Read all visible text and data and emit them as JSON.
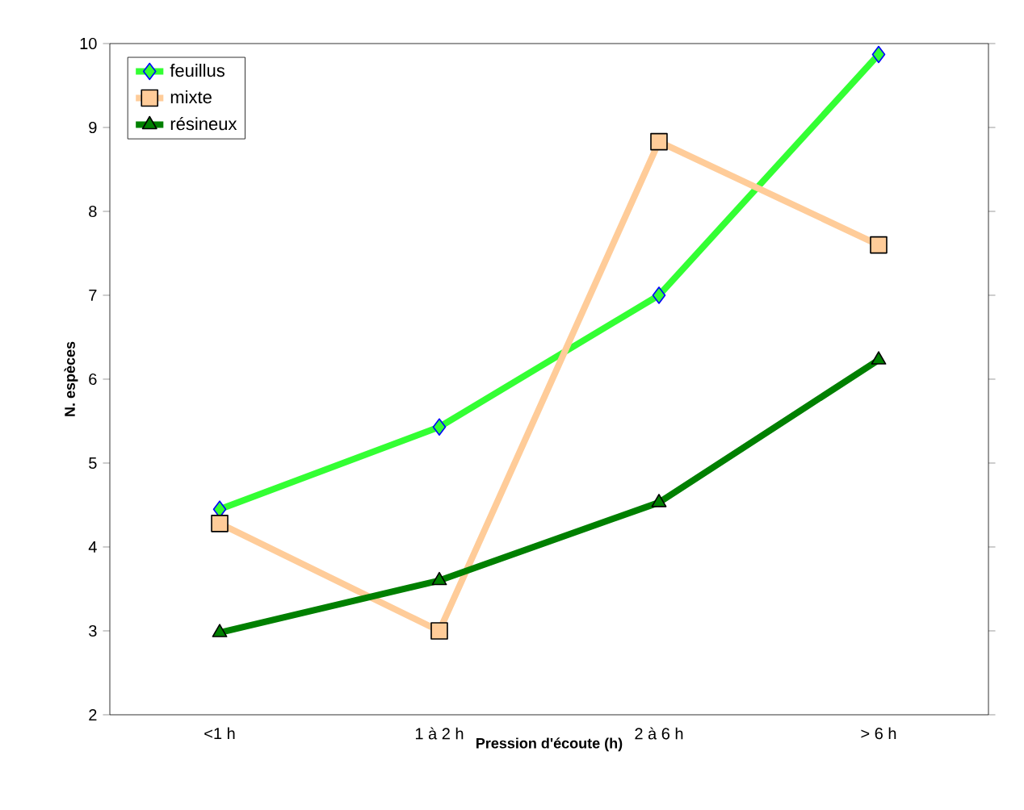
{
  "chart_data": {
    "type": "line",
    "xlabel": "Pression d'écoute (h)",
    "ylabel": "N. espèces",
    "categories": [
      "<1 h",
      "1 à 2 h",
      "2 à 6 h",
      "> 6 h"
    ],
    "series": [
      {
        "name": "feuillus",
        "color": "#33ff33",
        "marker": "diamond",
        "values": [
          4.45,
          5.43,
          7.0,
          9.87
        ]
      },
      {
        "name": "mixte",
        "color": "#ffcc99",
        "marker": "square",
        "values": [
          4.28,
          3.0,
          8.83,
          7.6
        ]
      },
      {
        "name": "résineux",
        "color": "#008000",
        "marker": "triangle",
        "values": [
          2.98,
          3.6,
          4.53,
          6.23
        ]
      }
    ],
    "ylim": [
      2,
      10
    ],
    "yticks": [
      2,
      3,
      4,
      5,
      6,
      7,
      8,
      9,
      10
    ],
    "grid": false,
    "legend": "top left"
  }
}
